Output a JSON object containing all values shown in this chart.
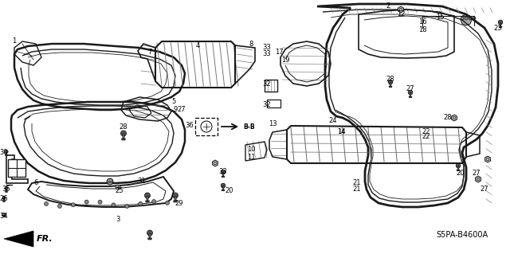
{
  "background_color": "#ffffff",
  "line_color": "#1a1a1a",
  "diagram_code": "S5PA-B4600A",
  "fig_w": 6.4,
  "fig_h": 3.19,
  "dpi": 100
}
